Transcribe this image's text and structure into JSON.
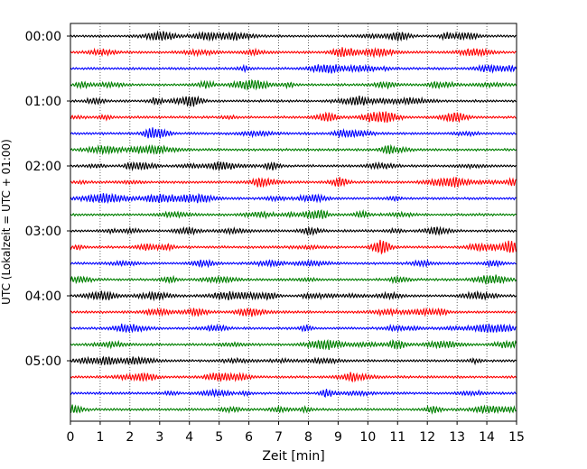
{
  "chart_data": {
    "type": "line",
    "title": "",
    "xlabel": "Zeit  [min]",
    "ylabel": "UTC (Lokalzeit = UTC + 01:00)",
    "xlim": [
      0,
      15
    ],
    "x_ticks": [
      "0",
      "1",
      "2",
      "3",
      "4",
      "5",
      "6",
      "7",
      "8",
      "9",
      "10",
      "11",
      "12",
      "13",
      "14",
      "15"
    ],
    "y_tick_labels": [
      "00:00",
      "01:00",
      "02:00",
      "03:00",
      "04:00",
      "05:00"
    ],
    "traces_per_hour": 4,
    "trace_count": 24,
    "trace_colors": [
      "#000000",
      "#ff0000",
      "#0000ff",
      "#008000"
    ],
    "grid": "vertical dotted at each minute",
    "legend": "none"
  }
}
